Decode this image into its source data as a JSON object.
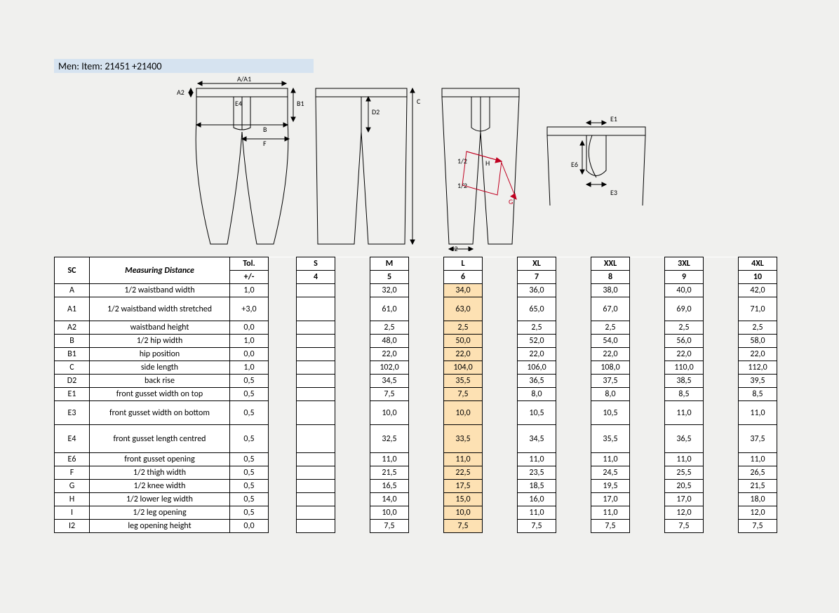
{
  "title": "Men: Item: 21451 +21400",
  "diagram_labels": {
    "aa1": "A/A1",
    "a2": "A2",
    "e4": "E4",
    "b1": "B1",
    "b": "B",
    "f": "F",
    "d2": "D2",
    "c": "C",
    "half": "1/2",
    "h": "H",
    "g": "G",
    "i2": "I2",
    "e1": "E1",
    "e6": "E6",
    "e3": "E3"
  },
  "headers": {
    "sc": "SC",
    "md": "Measuring Distance",
    "tol": "Tol.",
    "tol2": "+/-",
    "sizes": [
      "S",
      "M",
      "L",
      "XL",
      "XXL",
      "3XL",
      "4XL"
    ],
    "size_nums": [
      "4",
      "5",
      "6",
      "7",
      "8",
      "9",
      "10"
    ]
  },
  "highlight_size_index": 2,
  "rows": [
    {
      "sc": "A",
      "md": "1/2 waistband width",
      "tol": "1,0",
      "vals": [
        "",
        "32,0",
        "34,0",
        "36,0",
        "38,0",
        "40,0",
        "42,0"
      ]
    },
    {
      "sc": "A1",
      "md": "1/2 waistband width stretched",
      "tol": "+3,0",
      "vals": [
        "",
        "61,0",
        "63,0",
        "65,0",
        "67,0",
        "69,0",
        "71,0"
      ],
      "tall": "a1"
    },
    {
      "sc": "A2",
      "md": "waistband height",
      "tol": "0,0",
      "vals": [
        "",
        "2,5",
        "2,5",
        "2,5",
        "2,5",
        "2,5",
        "2,5"
      ]
    },
    {
      "sc": "B",
      "md": "1/2 hip width",
      "tol": "1,0",
      "vals": [
        "",
        "48,0",
        "50,0",
        "52,0",
        "54,0",
        "56,0",
        "58,0"
      ]
    },
    {
      "sc": "B1",
      "md": "hip position",
      "tol": "0,0",
      "vals": [
        "",
        "22,0",
        "22,0",
        "22,0",
        "22,0",
        "22,0",
        "22,0"
      ]
    },
    {
      "sc": "C",
      "md": "side length",
      "tol": "1,0",
      "vals": [
        "",
        "102,0",
        "104,0",
        "106,0",
        "108,0",
        "110,0",
        "112,0"
      ]
    },
    {
      "sc": "D2",
      "md": "back rise",
      "tol": "0,5",
      "vals": [
        "",
        "34,5",
        "35,5",
        "36,5",
        "37,5",
        "38,5",
        "39,5"
      ]
    },
    {
      "sc": "E1",
      "md": "front gusset width on top",
      "tol": "0,5",
      "vals": [
        "",
        "7,5",
        "7,5",
        "8,0",
        "8,0",
        "8,5",
        "8,5"
      ]
    },
    {
      "sc": "E3",
      "md": "front gusset width on bottom",
      "tol": "0,5",
      "vals": [
        "",
        "10,0",
        "10,0",
        "10,5",
        "10,5",
        "11,0",
        "11,0"
      ],
      "tall": "e3"
    },
    {
      "sc": "E4",
      "md": "front gusset length centred",
      "tol": "0,5",
      "vals": [
        "",
        "32,5",
        "33,5",
        "34,5",
        "35,5",
        "36,5",
        "37,5"
      ],
      "tall": "e4"
    },
    {
      "sc": "E6",
      "md": "front gusset opening",
      "tol": "0,5",
      "vals": [
        "",
        "11,0",
        "11,0",
        "11,0",
        "11,0",
        "11,0",
        "11,0"
      ]
    },
    {
      "sc": "F",
      "md": "1/2 thigh width",
      "tol": "0,5",
      "vals": [
        "",
        "21,5",
        "22,5",
        "23,5",
        "24,5",
        "25,5",
        "26,5"
      ]
    },
    {
      "sc": "G",
      "md": "1/2 knee width",
      "tol": "0,5",
      "vals": [
        "",
        "16,5",
        "17,5",
        "18,5",
        "19,5",
        "20,5",
        "21,5"
      ]
    },
    {
      "sc": "H",
      "md": "1/2 lower leg width",
      "tol": "0,5",
      "vals": [
        "",
        "14,0",
        "15,0",
        "16,0",
        "17,0",
        "17,0",
        "18,0"
      ]
    },
    {
      "sc": "I",
      "md": "1/2 leg opening",
      "tol": "0,5",
      "vals": [
        "",
        "10,0",
        "10,0",
        "11,0",
        "11,0",
        "12,0",
        "12,0"
      ]
    },
    {
      "sc": "I2",
      "md": "leg opening height",
      "tol": "0,0",
      "vals": [
        "",
        "7,5",
        "7,5",
        "7,5",
        "7,5",
        "7,5",
        "7,5"
      ]
    }
  ],
  "style": {
    "background": "#f0f0ee",
    "title_bg": "#d6e3f0",
    "highlight_bg": "#fde1b3",
    "border_color": "#000000",
    "red": "#c00020"
  }
}
